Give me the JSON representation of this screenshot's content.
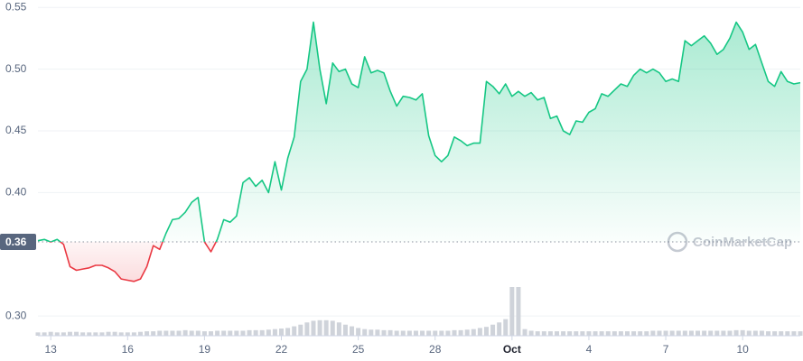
{
  "chart_data": {
    "type": "line",
    "x": [
      12.5,
      12.75,
      13,
      13.25,
      13.5,
      13.75,
      14,
      14.25,
      14.5,
      14.75,
      15,
      15.25,
      15.5,
      15.75,
      16,
      16.25,
      16.5,
      16.75,
      17,
      17.25,
      17.5,
      17.75,
      18,
      18.25,
      18.5,
      18.75,
      19,
      19.25,
      19.5,
      19.75,
      20,
      20.25,
      20.5,
      20.75,
      21,
      21.25,
      21.5,
      21.75,
      22,
      22.25,
      22.5,
      22.75,
      23,
      23.25,
      23.5,
      23.75,
      24,
      24.25,
      24.5,
      24.75,
      25,
      25.25,
      25.5,
      25.75,
      26,
      26.25,
      26.5,
      26.75,
      27,
      27.25,
      27.5,
      27.75,
      28,
      28.25,
      28.5,
      28.75,
      29,
      29.25,
      29.5,
      29.75,
      30,
      30.25,
      30.5,
      30.75,
      31,
      31.25,
      31.5,
      31.75,
      32,
      32.25,
      32.5,
      32.75,
      33,
      33.25,
      33.5,
      33.75,
      34,
      34.25,
      34.5,
      34.75,
      35,
      35.25,
      35.5,
      35.75,
      36,
      36.25,
      36.5,
      36.75,
      37,
      37.25,
      37.5,
      37.75,
      38,
      38.25,
      38.5,
      38.75,
      39,
      39.25,
      39.5,
      39.75,
      40,
      40.25,
      40.5,
      40.75,
      41,
      41.25,
      41.5,
      41.75,
      42,
      42.25
    ],
    "values": [
      0.361,
      0.362,
      0.36,
      0.362,
      0.358,
      0.34,
      0.337,
      0.338,
      0.339,
      0.341,
      0.341,
      0.339,
      0.336,
      0.33,
      0.329,
      0.328,
      0.33,
      0.34,
      0.357,
      0.354,
      0.367,
      0.378,
      0.379,
      0.384,
      0.392,
      0.396,
      0.36,
      0.352,
      0.362,
      0.378,
      0.376,
      0.381,
      0.408,
      0.412,
      0.405,
      0.41,
      0.4,
      0.425,
      0.402,
      0.428,
      0.445,
      0.49,
      0.5,
      0.538,
      0.5,
      0.472,
      0.505,
      0.498,
      0.5,
      0.488,
      0.485,
      0.51,
      0.497,
      0.499,
      0.497,
      0.482,
      0.47,
      0.478,
      0.477,
      0.475,
      0.48,
      0.446,
      0.43,
      0.425,
      0.43,
      0.445,
      0.442,
      0.438,
      0.44,
      0.44,
      0.49,
      0.486,
      0.48,
      0.488,
      0.478,
      0.482,
      0.478,
      0.481,
      0.475,
      0.477,
      0.46,
      0.462,
      0.45,
      0.447,
      0.458,
      0.457,
      0.465,
      0.468,
      0.48,
      0.478,
      0.483,
      0.488,
      0.486,
      0.495,
      0.5,
      0.497,
      0.5,
      0.497,
      0.49,
      0.492,
      0.49,
      0.523,
      0.519,
      0.523,
      0.527,
      0.521,
      0.512,
      0.516,
      0.525,
      0.538,
      0.53,
      0.516,
      0.52,
      0.505,
      0.49,
      0.486,
      0.498,
      0.49,
      0.488,
      0.489
    ],
    "volume": [
      6,
      6,
      7,
      6,
      6,
      7,
      7,
      6,
      6,
      6,
      6,
      7,
      7,
      6,
      6,
      6,
      7,
      8,
      8,
      9,
      9,
      9,
      9,
      10,
      9,
      9,
      8,
      8,
      9,
      9,
      9,
      9,
      9,
      10,
      10,
      10,
      11,
      12,
      13,
      14,
      17,
      20,
      24,
      27,
      28,
      28,
      27,
      24,
      20,
      17,
      14,
      12,
      11,
      11,
      10,
      10,
      9,
      9,
      9,
      9,
      9,
      9,
      9,
      9,
      9,
      10,
      10,
      11,
      12,
      14,
      16,
      20,
      24,
      30,
      88,
      88,
      12,
      9,
      8,
      8,
      8,
      8,
      8,
      8,
      8,
      8,
      8,
      8,
      8,
      8,
      8,
      8,
      8,
      8,
      8,
      8,
      9,
      9,
      9,
      9,
      9,
      9,
      9,
      9,
      9,
      9,
      9,
      9,
      9,
      10,
      10,
      9,
      9,
      9,
      8,
      8,
      8,
      8,
      8,
      8
    ],
    "baseline": 0.36,
    "color_above": "#16c784",
    "color_below": "#ea3943",
    "volume_color": "#cfd3da",
    "watermark": "CoinMarketCap",
    "xlim": [
      12.5,
      42.25
    ],
    "xticks": [
      13,
      16,
      19,
      22,
      25,
      28,
      {
        "value": 31,
        "label": "Oct"
      },
      {
        "value": 34,
        "label": "4"
      },
      {
        "value": 37,
        "label": "7"
      },
      {
        "value": 40,
        "label": "10"
      }
    ],
    "ylim": [
      0.284,
      0.556
    ],
    "yticks": [
      {
        "value": 0.3,
        "label": "0.30"
      },
      {
        "value": 0.4,
        "label": "0.40"
      },
      0.45,
      {
        "value": 0.5,
        "label": "0.50"
      },
      0.55
    ],
    "grid": true
  }
}
